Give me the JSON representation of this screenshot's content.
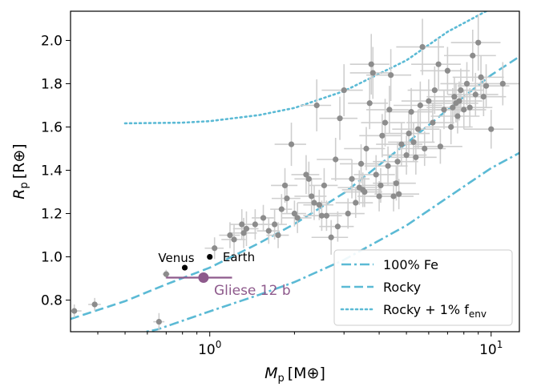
{
  "chart_data": {
    "type": "scatter",
    "xscale": "log",
    "xlim": [
      0.32,
      12.6
    ],
    "ylim": [
      0.654,
      2.135
    ],
    "xlabel": {
      "main": "M",
      "sub": "p",
      "unit": "[M⊕]"
    },
    "ylabel": {
      "main": "R",
      "sub": "p",
      "unit": "[R⊕]"
    },
    "xticks": [
      {
        "value": 1,
        "label": "10",
        "exp": "0"
      },
      {
        "value": 10,
        "label": "10",
        "exp": "1"
      }
    ],
    "yticks": [
      {
        "value": 0.8,
        "label": "0.8"
      },
      {
        "value": 1.0,
        "label": "1.0"
      },
      {
        "value": 1.2,
        "label": "1.2"
      },
      {
        "value": 1.4,
        "label": "1.4"
      },
      {
        "value": 1.6,
        "label": "1.6"
      },
      {
        "value": 1.8,
        "label": "1.8"
      },
      {
        "value": 2.0,
        "label": "2.0"
      }
    ],
    "colors": {
      "model": "#5bbad5",
      "sample": "#8c8c8c",
      "sample_err": "#cfcfcf",
      "highlight": "#8e5a8c",
      "solar": "#000000"
    },
    "curves": [
      {
        "name": "100% Fe",
        "style": "dashdot",
        "points": [
          [
            0.4,
            0.608
          ],
          [
            0.65,
            0.664
          ],
          [
            1,
            0.748
          ],
          [
            1.5,
            0.825
          ],
          [
            2,
            0.883
          ],
          [
            3,
            0.986
          ],
          [
            5,
            1.145
          ],
          [
            8,
            1.325
          ],
          [
            10,
            1.41
          ],
          [
            12.6,
            1.48
          ]
        ]
      },
      {
        "name": "Rocky",
        "style": "dashed",
        "points": [
          [
            0.32,
            0.713
          ],
          [
            0.5,
            0.795
          ],
          [
            0.7,
            0.873
          ],
          [
            1,
            0.95
          ],
          [
            1.5,
            1.064
          ],
          [
            2,
            1.152
          ],
          [
            3,
            1.295
          ],
          [
            5,
            1.525
          ],
          [
            7,
            1.68
          ],
          [
            10,
            1.84
          ],
          [
            12.6,
            1.925
          ]
        ]
      },
      {
        "name": "Rocky + 1% f",
        "name_sub": "env",
        "style": "dotted",
        "points": [
          [
            0.5,
            1.617
          ],
          [
            0.8,
            1.62
          ],
          [
            1,
            1.627
          ],
          [
            1.5,
            1.655
          ],
          [
            2,
            1.688
          ],
          [
            3,
            1.766
          ],
          [
            5,
            1.908
          ],
          [
            7,
            2.04
          ],
          [
            9.6,
            2.135
          ]
        ]
      }
    ],
    "series": [
      {
        "name": "sample",
        "points": [
          [
            0.33,
            0.75,
            0.02,
            0.03
          ],
          [
            0.39,
            0.78,
            0.02,
            0.03
          ],
          [
            0.66,
            0.7,
            0.03,
            0.04
          ],
          [
            0.7,
            0.92,
            0.02,
            0.02
          ],
          [
            1.04,
            1.04,
            0.08,
            0.05
          ],
          [
            1.18,
            1.1,
            0.1,
            0.06
          ],
          [
            1.22,
            1.08,
            0.12,
            0.07
          ],
          [
            1.3,
            1.15,
            0.12,
            0.07
          ],
          [
            1.32,
            1.11,
            0.15,
            0.07
          ],
          [
            1.35,
            1.13,
            0.14,
            0.08
          ],
          [
            1.45,
            1.15,
            0.15,
            0.07
          ],
          [
            1.55,
            1.18,
            0.14,
            0.06
          ],
          [
            1.62,
            1.12,
            0.15,
            0.06
          ],
          [
            1.7,
            1.15,
            0.18,
            0.07
          ],
          [
            1.75,
            1.1,
            0.16,
            0.06
          ],
          [
            1.8,
            1.22,
            0.16,
            0.07
          ],
          [
            1.85,
            1.33,
            0.2,
            0.08
          ],
          [
            1.88,
            1.27,
            0.22,
            0.07
          ],
          [
            1.95,
            1.52,
            0.25,
            0.1
          ],
          [
            2.0,
            1.2,
            0.2,
            0.06
          ],
          [
            2.05,
            1.18,
            0.25,
            0.07
          ],
          [
            2.2,
            1.38,
            0.25,
            0.09
          ],
          [
            2.25,
            1.36,
            0.25,
            0.08
          ],
          [
            2.3,
            1.28,
            0.3,
            0.08
          ],
          [
            2.35,
            1.25,
            0.3,
            0.08
          ],
          [
            2.4,
            1.7,
            0.3,
            0.12
          ],
          [
            2.45,
            1.24,
            0.3,
            0.07
          ],
          [
            2.5,
            1.19,
            0.35,
            0.07
          ],
          [
            2.55,
            1.33,
            0.3,
            0.08
          ],
          [
            2.6,
            1.19,
            0.35,
            0.07
          ],
          [
            2.7,
            1.09,
            0.4,
            0.08
          ],
          [
            2.8,
            1.45,
            0.4,
            0.1
          ],
          [
            2.85,
            1.14,
            0.4,
            0.07
          ],
          [
            2.9,
            1.64,
            0.45,
            0.1
          ],
          [
            3.0,
            1.77,
            0.5,
            0.12
          ],
          [
            3.1,
            1.2,
            0.45,
            0.07
          ],
          [
            3.2,
            1.36,
            0.5,
            0.09
          ],
          [
            3.3,
            1.25,
            0.5,
            0.07
          ],
          [
            3.4,
            1.32,
            0.55,
            0.08
          ],
          [
            3.45,
            1.43,
            0.55,
            0.09
          ],
          [
            3.5,
            1.31,
            0.55,
            0.08
          ],
          [
            3.55,
            1.3,
            0.55,
            0.07
          ],
          [
            3.6,
            1.5,
            0.6,
            0.1
          ],
          [
            3.7,
            1.71,
            0.6,
            0.12
          ],
          [
            3.75,
            1.89,
            0.6,
            0.14
          ],
          [
            3.8,
            1.85,
            0.65,
            0.12
          ],
          [
            3.9,
            1.38,
            0.65,
            0.09
          ],
          [
            4.0,
            1.28,
            0.65,
            0.07
          ],
          [
            4.05,
            1.33,
            0.65,
            0.08
          ],
          [
            4.1,
            1.56,
            0.7,
            0.1
          ],
          [
            4.2,
            1.62,
            0.75,
            0.11
          ],
          [
            4.3,
            1.42,
            0.75,
            0.09
          ],
          [
            4.35,
            1.68,
            0.75,
            0.11
          ],
          [
            4.4,
            1.84,
            0.8,
            0.12
          ],
          [
            4.5,
            1.28,
            0.8,
            0.07
          ],
          [
            4.6,
            1.34,
            0.8,
            0.08
          ],
          [
            4.65,
            1.44,
            0.85,
            0.09
          ],
          [
            4.7,
            1.29,
            0.85,
            0.07
          ],
          [
            4.8,
            1.52,
            0.9,
            0.1
          ],
          [
            5.0,
            1.47,
            0.9,
            0.09
          ],
          [
            5.1,
            1.57,
            0.95,
            0.1
          ],
          [
            5.2,
            1.67,
            1.0,
            0.11
          ],
          [
            5.3,
            1.53,
            1.0,
            0.09
          ],
          [
            5.4,
            1.46,
            1.0,
            0.08
          ],
          [
            5.5,
            1.59,
            1.05,
            0.09
          ],
          [
            5.6,
            1.7,
            1.1,
            0.11
          ],
          [
            5.7,
            1.97,
            1.1,
            0.13
          ],
          [
            5.8,
            1.5,
            1.1,
            0.08
          ],
          [
            6.0,
            1.72,
            1.2,
            0.1
          ],
          [
            6.2,
            1.62,
            1.2,
            0.09
          ],
          [
            6.3,
            1.77,
            1.25,
            0.11
          ],
          [
            6.5,
            1.89,
            1.3,
            0.12
          ],
          [
            6.6,
            1.51,
            1.3,
            0.08
          ],
          [
            6.8,
            1.68,
            1.3,
            0.09
          ],
          [
            7.0,
            1.86,
            1.4,
            0.11
          ],
          [
            7.2,
            1.6,
            1.4,
            0.08
          ],
          [
            7.3,
            1.69,
            1.4,
            0.09
          ],
          [
            7.4,
            1.74,
            1.5,
            0.09
          ],
          [
            7.5,
            1.71,
            1.5,
            0.09
          ],
          [
            7.6,
            1.65,
            1.5,
            0.08
          ],
          [
            7.7,
            1.72,
            1.6,
            0.09
          ],
          [
            7.8,
            1.77,
            1.6,
            0.1
          ],
          [
            8.0,
            1.68,
            1.6,
            0.09
          ],
          [
            8.2,
            1.8,
            1.6,
            0.1
          ],
          [
            8.4,
            1.69,
            1.7,
            0.09
          ],
          [
            8.6,
            1.93,
            1.8,
            0.12
          ],
          [
            8.8,
            1.75,
            1.8,
            0.1
          ],
          [
            9.0,
            1.99,
            1.8,
            0.13
          ],
          [
            9.2,
            1.83,
            1.9,
            0.1
          ],
          [
            9.4,
            1.74,
            1.9,
            0.09
          ],
          [
            9.6,
            1.79,
            2.0,
            0.1
          ],
          [
            10.0,
            1.59,
            2.0,
            0.09
          ],
          [
            11.0,
            1.8,
            2.1,
            0.1
          ]
        ]
      },
      {
        "name": "solar",
        "points": [
          [
            0.815,
            0.95
          ],
          [
            1.0,
            1.0
          ]
        ]
      }
    ],
    "labels": {
      "venus": "Venus",
      "earth": "Earth",
      "highlight": "Gliese 12 b"
    },
    "highlight": {
      "x": 0.95,
      "y": 0.904,
      "xerr_lo": 0.25,
      "xerr_hi": 0.25,
      "yerr": 0.018
    },
    "legend": {
      "placement": "lower right",
      "entries": [
        {
          "label": "100% Fe",
          "sub": ""
        },
        {
          "label": "Rocky",
          "sub": ""
        },
        {
          "label": "Rocky + 1% f",
          "sub": "env"
        }
      ]
    }
  }
}
